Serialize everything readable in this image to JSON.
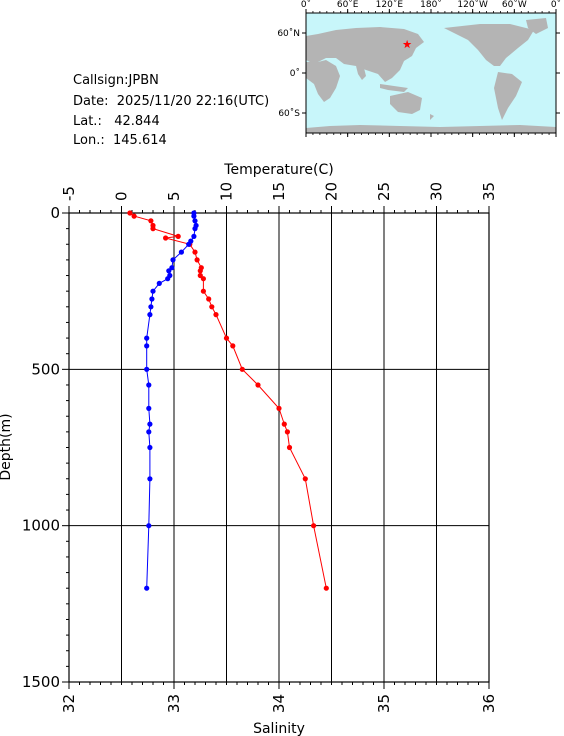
{
  "station": {
    "callsign_label": "Callsign:",
    "callsign": "JPBN",
    "date_label": "Date:",
    "date": "2025/11/20 22:16(UTC)",
    "lat_label": "Lat.:",
    "lat": "42.844",
    "lon_label": "Lon.:",
    "lon": "145.614"
  },
  "map": {
    "lon_labels": [
      "0˚",
      "60˚E",
      "120˚E",
      "180˚",
      "120˚W",
      "60˚W",
      "0˚"
    ],
    "lat_labels": [
      "60˚N",
      "0˚",
      "60˚S"
    ],
    "ocean_color": "#c8f6fa",
    "land_color": "#b4b4b4",
    "marker_color": "#ff0000"
  },
  "chart_data": {
    "type": "line",
    "y_axis": {
      "label": "Depth(m)",
      "ticks": [
        0,
        500,
        1000,
        1500
      ],
      "lim": [
        0,
        1500
      ],
      "inverted": true
    },
    "x_top": {
      "label": "Temperature(C)",
      "ticks": [
        -5,
        0,
        5,
        10,
        15,
        20,
        25,
        30,
        35
      ],
      "lim": [
        -5,
        35
      ]
    },
    "x_bottom": {
      "label": "Salinity",
      "ticks": [
        32,
        33,
        34,
        35,
        36
      ],
      "lim": [
        32,
        36
      ]
    },
    "grid": true,
    "series": [
      {
        "quantity": "temperature",
        "axis": "top",
        "color": "#ff0000",
        "depth": [
          0,
          10,
          25,
          40,
          50,
          75,
          80,
          100,
          125,
          150,
          175,
          185,
          200,
          210,
          250,
          275,
          300,
          325,
          400,
          425,
          500,
          550,
          625,
          675,
          700,
          750,
          850,
          1000,
          1200
        ],
        "values": [
          0.8,
          1.2,
          2.8,
          3.0,
          3.0,
          5.4,
          4.2,
          6.5,
          7.0,
          7.2,
          7.6,
          7.5,
          7.5,
          7.8,
          7.8,
          8.3,
          8.6,
          9.0,
          10.0,
          10.6,
          11.5,
          13.0,
          15.0,
          15.5,
          15.8,
          16.0,
          17.5,
          18.3,
          19.5
        ]
      },
      {
        "quantity": "salinity",
        "axis": "bottom",
        "color": "#0000ff",
        "depth": [
          0,
          10,
          25,
          40,
          50,
          75,
          90,
          100,
          125,
          150,
          175,
          185,
          200,
          210,
          225,
          250,
          275,
          300,
          325,
          400,
          425,
          500,
          550,
          625,
          675,
          700,
          750,
          850,
          1000,
          1200
        ],
        "values": [
          33.19,
          33.19,
          33.2,
          33.21,
          33.2,
          33.19,
          33.16,
          33.14,
          33.07,
          32.99,
          32.98,
          32.95,
          32.96,
          32.94,
          32.86,
          32.8,
          32.79,
          32.78,
          32.77,
          32.74,
          32.74,
          32.74,
          32.76,
          32.76,
          32.77,
          32.76,
          32.77,
          32.77,
          32.76,
          32.74
        ]
      }
    ]
  }
}
